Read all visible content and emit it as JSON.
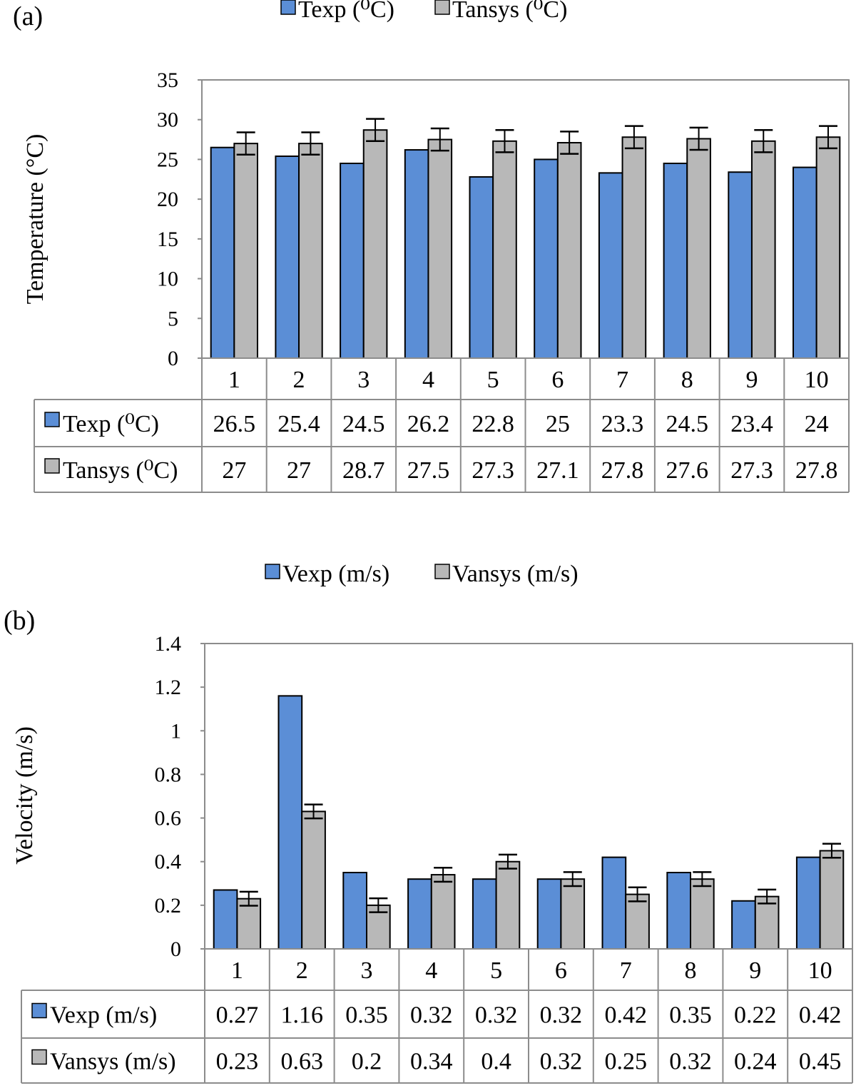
{
  "colors": {
    "exp": "#5b8ed6",
    "ansys": "#b8b8b8",
    "border": "#000000",
    "grid_border": "#8c8c8c"
  },
  "chart_data": [
    {
      "panel": "(a)",
      "type": "bar",
      "ylabel": "Temperature (°C)",
      "ylim": [
        0,
        35
      ],
      "yticks": [
        "0",
        "5",
        "10",
        "15",
        "20",
        "25",
        "30",
        "35"
      ],
      "categories": [
        "1",
        "2",
        "3",
        "4",
        "5",
        "6",
        "7",
        "8",
        "9",
        "10"
      ],
      "series": [
        {
          "name": "Texp (⁰C)",
          "error_bars": false,
          "values": [
            26.5,
            25.4,
            24.5,
            26.2,
            22.8,
            25,
            23.3,
            24.5,
            23.4,
            24
          ],
          "labels": [
            "26.5",
            "25.4",
            "24.5",
            "26.2",
            "22.8",
            "25",
            "23.3",
            "24.5",
            "23.4",
            "24"
          ]
        },
        {
          "name": "Tansys (⁰C)",
          "error_bars": true,
          "error": 1.4,
          "values": [
            27,
            27,
            28.7,
            27.5,
            27.3,
            27.1,
            27.8,
            27.6,
            27.3,
            27.8
          ],
          "labels": [
            "27",
            "27",
            "28.7",
            "27.5",
            "27.3",
            "27.1",
            "27.8",
            "27.6",
            "27.3",
            "27.8"
          ]
        }
      ],
      "legend_position": "top-center",
      "data_table": true
    },
    {
      "panel": "(b)",
      "type": "bar",
      "ylabel": "Velocity (m/s)",
      "ylim": [
        0,
        1.4
      ],
      "yticks": [
        "0",
        "0.2",
        "0.4",
        "0.6",
        "0.8",
        "1",
        "1.2",
        "1.4"
      ],
      "categories": [
        "1",
        "2",
        "3",
        "4",
        "5",
        "6",
        "7",
        "8",
        "9",
        "10"
      ],
      "series": [
        {
          "name": "Vexp (m/s)",
          "error_bars": false,
          "values": [
            0.27,
            1.16,
            0.35,
            0.32,
            0.32,
            0.32,
            0.42,
            0.35,
            0.22,
            0.42
          ],
          "labels": [
            "0.27",
            "1.16",
            "0.35",
            "0.32",
            "0.32",
            "0.32",
            "0.42",
            "0.35",
            "0.22",
            "0.42"
          ]
        },
        {
          "name": "Vansys (m/s)",
          "error_bars": true,
          "error": 0.032,
          "values": [
            0.23,
            0.63,
            0.2,
            0.34,
            0.4,
            0.32,
            0.25,
            0.32,
            0.24,
            0.45
          ],
          "labels": [
            "0.23",
            "0.63",
            "0.2",
            "0.34",
            "0.4",
            "0.32",
            "0.25",
            "0.32",
            "0.24",
            "0.45"
          ]
        }
      ],
      "legend_position": "top-center",
      "data_table": true
    }
  ]
}
